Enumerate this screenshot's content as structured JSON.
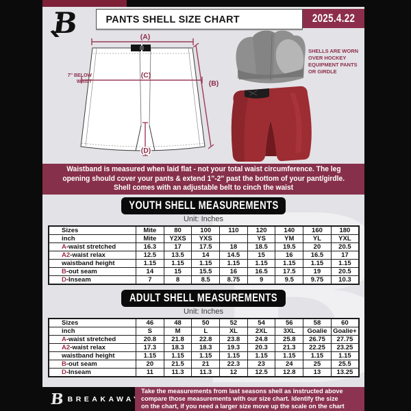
{
  "header": {
    "title": "PANTS SHELL SIZE CHART",
    "date": "2025.4.22",
    "logo_letter": "B"
  },
  "diagram": {
    "label_a": "(A)",
    "label_b": "(B)",
    "label_c": "(C)",
    "label_d": "(D)",
    "waist_note_lines": [
      "7'' BELOW",
      "WAIST"
    ],
    "photo_caption_lines": [
      "SHELLS ARE WORN",
      "OVER HOCKEY",
      "EQUIPMENT PANTS",
      "OR GIRDLE"
    ]
  },
  "notice_lines": [
    "Waistband is measured when laid flat - not your total waist circumference. The leg",
    "opening should cover your pants & extend 1''-2'' past the bottom of your pant/girdle.",
    "Shell comes with an adjustable belt to cinch the waist"
  ],
  "youth": {
    "banner_label": "YOUTH SHELL MEASUREMENTS",
    "unit": "Unit: Inches",
    "rows": [
      {
        "prefix": "",
        "label": "Sizes",
        "values": [
          "Mite",
          "80",
          "100",
          "110",
          "120",
          "140",
          "160",
          "180"
        ]
      },
      {
        "prefix": "",
        "label": "inch",
        "values": [
          "Mite",
          "Y2XS",
          "YXS",
          "",
          "YS",
          "YM",
          "YL",
          "YXL"
        ]
      },
      {
        "prefix": "A",
        "label": "-waist stretched",
        "values": [
          "16.3",
          "17",
          "17.5",
          "18",
          "18.5",
          "19.5",
          "20",
          "20.5"
        ]
      },
      {
        "prefix": "A2",
        "label": "-waist relax",
        "values": [
          "12.5",
          "13.5",
          "14",
          "14.5",
          "15",
          "16",
          "16.5",
          "17"
        ]
      },
      {
        "prefix": "",
        "label": "waistband height",
        "values": [
          "1.15",
          "1.15",
          "1.15",
          "1.15",
          "1.15",
          "1.15",
          "1.15",
          "1.15"
        ]
      },
      {
        "prefix": "B",
        "label": "-out seam",
        "values": [
          "14",
          "15",
          "15.5",
          "16",
          "16.5",
          "17.5",
          "19",
          "20.5"
        ]
      },
      {
        "prefix": "D",
        "label": "-Inseam",
        "values": [
          "7",
          "8",
          "8.5",
          "8.75",
          "9",
          "9.5",
          "9.75",
          "10.3"
        ]
      }
    ]
  },
  "adult": {
    "banner_label": "ADULT SHELL MEASUREMENTS",
    "unit": "Unit: Inches",
    "rows": [
      {
        "prefix": "",
        "label": "Sizes",
        "values": [
          "46",
          "48",
          "50",
          "52",
          "54",
          "56",
          "58",
          "60"
        ]
      },
      {
        "prefix": "",
        "label": "inch",
        "values": [
          "S",
          "M",
          "L",
          "XL",
          "2XL",
          "3XL",
          "Goalie",
          "Goalie+"
        ]
      },
      {
        "prefix": "A",
        "label": "-waist stretched",
        "values": [
          "20.8",
          "21.8",
          "22.8",
          "23.8",
          "24.8",
          "25.8",
          "26.75",
          "27.75"
        ]
      },
      {
        "prefix": "A2",
        "label": "-waist relax",
        "values": [
          "17.3",
          "18.3",
          "18.3",
          "19.3",
          "20.3",
          "21.3",
          "22.25",
          "23.25"
        ]
      },
      {
        "prefix": "",
        "label": "waistband height",
        "values": [
          "1.15",
          "1.15",
          "1.15",
          "1.15",
          "1.15",
          "1.15",
          "1.15",
          "1.15"
        ]
      },
      {
        "prefix": "B",
        "label": "-out seam",
        "values": [
          "20",
          "21.5",
          "21",
          "22.3",
          "23",
          "24",
          "25",
          "25.5"
        ]
      },
      {
        "prefix": "D",
        "label": "-Inseam",
        "values": [
          "11",
          "11.3",
          "11.3",
          "12",
          "12.5",
          "12.8",
          "13",
          "13.25"
        ]
      }
    ]
  },
  "footer": {
    "brand": "BREAKAWAY",
    "note_lines": [
      "Take the measurements from last seasons shell as instructed above",
      "compare those measurements  with our size chart. Identify the size",
      "on the chart, if you need a larger size move up the scale on the chart"
    ]
  },
  "colors": {
    "maroon_band": "#87304b",
    "maroon_dark": "#7d2038",
    "date_box": "#8c2e4b",
    "accent_red": "#9e2b43",
    "page_bg": "#e3e2e6",
    "bar_black": "#0b0b0b",
    "shell_red": "#9e2c33"
  }
}
